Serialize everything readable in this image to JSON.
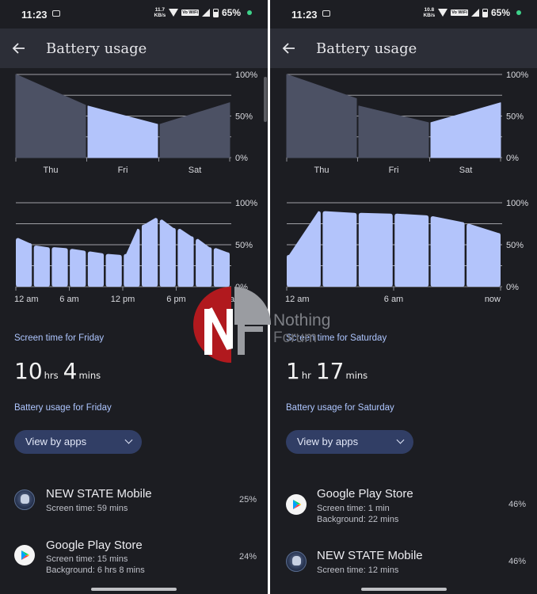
{
  "colors": {
    "background": "#1c1d22",
    "appbar": "#2c2e37",
    "accent_bar": "#b3c4fb",
    "dim_bar": "#4c5164",
    "label_blue": "#aec6ff",
    "chip": "#313e65"
  },
  "left": {
    "status": {
      "time": "11:23",
      "speed_value": "11.7",
      "speed_unit": "KB/s",
      "volte": "Vo WiFi",
      "battery_pct": "65%"
    },
    "appbar": {
      "back_icon": "arrow-left-icon",
      "title": "Battery usage"
    },
    "day_chart_labels": [
      "Thu",
      "Fri",
      "Sat"
    ],
    "pct_labels": [
      "100%",
      "50%",
      "0%"
    ],
    "hour_chart_labels": [
      "12 am",
      "6 am",
      "12 pm",
      "6 pm",
      "12 am"
    ],
    "screen_time_heading": "Screen time for Friday",
    "screen_time": {
      "hours": "10",
      "hours_unit": "hrs",
      "mins": "4",
      "mins_unit": "mins"
    },
    "battery_heading": "Battery usage for Friday",
    "view_by": "View by apps",
    "apps": [
      {
        "name": "NEW STATE Mobile",
        "line1": "Screen time: 59 mins",
        "line2": "",
        "pct": "25%",
        "icon": "new-state-icon"
      },
      {
        "name": "Google Play Store",
        "line1": "Screen time: 15 mins",
        "line2": "Background: 6 hrs 8 mins",
        "pct": "24%",
        "icon": "google-play-icon"
      }
    ]
  },
  "right": {
    "status": {
      "time": "11:23",
      "speed_value": "10.8",
      "speed_unit": "KB/s",
      "volte": "Vo WiFi",
      "battery_pct": "65%"
    },
    "appbar": {
      "back_icon": "arrow-left-icon",
      "title": "Battery usage"
    },
    "day_chart_labels": [
      "Thu",
      "Fri",
      "Sat"
    ],
    "pct_labels": [
      "100%",
      "50%",
      "0%"
    ],
    "hour_chart_labels": [
      "12 am",
      "6 am",
      "now"
    ],
    "screen_time_heading": "Screen time for Saturday",
    "screen_time": {
      "hours": "1",
      "hours_unit": "hr",
      "mins": "17",
      "mins_unit": "mins"
    },
    "battery_heading": "Battery usage for Saturday",
    "view_by": "View by apps",
    "apps": [
      {
        "name": "Google Play Store",
        "line1": "Screen time: 1 min",
        "line2": "Background: 22 mins",
        "pct": "46%",
        "icon": "google-play-icon"
      },
      {
        "name": "NEW STATE Mobile",
        "line1": "Screen time: 12 mins",
        "line2": "",
        "pct": "46%",
        "icon": "new-state-icon"
      }
    ]
  },
  "watermark": {
    "line1": "Nothing",
    "line2": "Forum"
  },
  "chart_data": [
    {
      "type": "area",
      "panel": "left",
      "chart": "daily",
      "categories": [
        "Thu",
        "Fri",
        "Sat"
      ],
      "segments": [
        [
          100,
          63
        ],
        [
          62,
          40
        ],
        [
          40,
          66
        ]
      ],
      "selected": "Fri",
      "ylim": [
        0,
        100
      ],
      "yticks": [
        "100%",
        "50%",
        "0%"
      ]
    },
    {
      "type": "bar",
      "panel": "left",
      "chart": "hourly",
      "segments": [
        [
          58,
          52
        ],
        [
          49,
          47
        ],
        [
          47,
          46
        ],
        [
          45,
          43
        ],
        [
          42,
          40
        ],
        [
          39,
          38
        ],
        [
          39,
          69
        ],
        [
          74,
          82
        ],
        [
          80,
          70
        ],
        [
          69,
          60
        ],
        [
          57,
          47
        ],
        [
          46,
          41
        ]
      ],
      "x_labels": [
        "12 am",
        "6 am",
        "12 pm",
        "6 pm",
        "12 am"
      ],
      "ylim": [
        0,
        100
      ],
      "yticks": [
        "100%",
        "50%",
        "0%"
      ]
    },
    {
      "type": "area",
      "panel": "right",
      "chart": "daily",
      "categories": [
        "Thu",
        "Fri",
        "Sat"
      ],
      "segments": [
        [
          100,
          71
        ],
        [
          62,
          42
        ],
        [
          42,
          66
        ]
      ],
      "selected": "Sat",
      "ylim": [
        0,
        100
      ],
      "yticks": [
        "100%",
        "50%",
        "0%"
      ]
    },
    {
      "type": "bar",
      "panel": "right",
      "chart": "hourly",
      "segments": [
        [
          38,
          90
        ],
        [
          90,
          88
        ],
        [
          88,
          87
        ],
        [
          87,
          85
        ],
        [
          84,
          77
        ],
        [
          75,
          64
        ]
      ],
      "x_labels": [
        "12 am",
        "6 am",
        "now"
      ],
      "ylim": [
        0,
        100
      ],
      "yticks": [
        "100%",
        "50%",
        "0%"
      ]
    }
  ]
}
